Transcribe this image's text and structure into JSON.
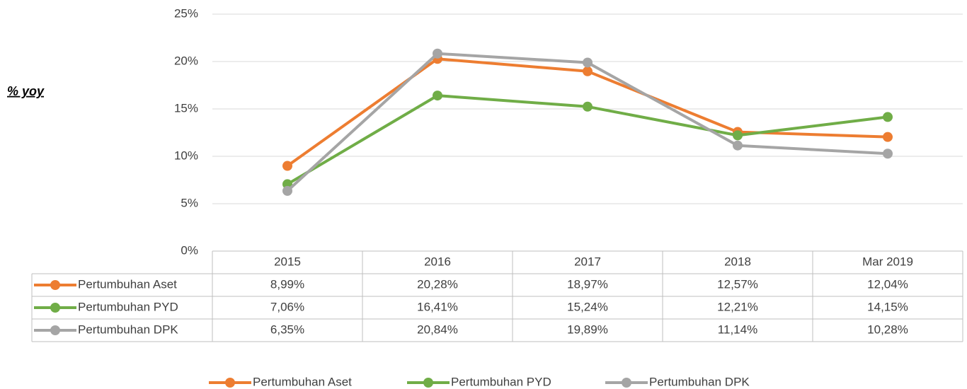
{
  "chart_data": {
    "type": "line",
    "y_label": "% yoy",
    "categories": [
      "2015",
      "2016",
      "2017",
      "2018",
      "Mar 2019"
    ],
    "series": [
      {
        "name": "Pertumbuhan Aset",
        "color": "#ed7d31",
        "values": [
          8.99,
          20.28,
          18.97,
          12.57,
          12.04
        ],
        "value_labels": [
          "8,99%",
          "20,28%",
          "18,97%",
          "12,57%",
          "12,04%"
        ]
      },
      {
        "name": "Pertumbuhan PYD",
        "color": "#70ad47",
        "values": [
          7.06,
          16.41,
          15.24,
          12.21,
          14.15
        ],
        "value_labels": [
          "7,06%",
          "16,41%",
          "15,24%",
          "12,21%",
          "14,15%"
        ]
      },
      {
        "name": "Pertumbuhan DPK",
        "color": "#a5a5a5",
        "values": [
          6.35,
          20.84,
          19.89,
          11.14,
          10.28
        ],
        "value_labels": [
          "6,35%",
          "20,84%",
          "19,89%",
          "11,14%",
          "10,28%"
        ]
      }
    ],
    "ylim": [
      0,
      25
    ],
    "yticks": [
      {
        "value": 0,
        "label": "0%"
      },
      {
        "value": 5,
        "label": "5%"
      },
      {
        "value": 10,
        "label": "10%"
      },
      {
        "value": 15,
        "label": "15%"
      },
      {
        "value": 20,
        "label": "20%"
      },
      {
        "value": 25,
        "label": "25%"
      }
    ],
    "grid": true,
    "legend": "bottom"
  }
}
